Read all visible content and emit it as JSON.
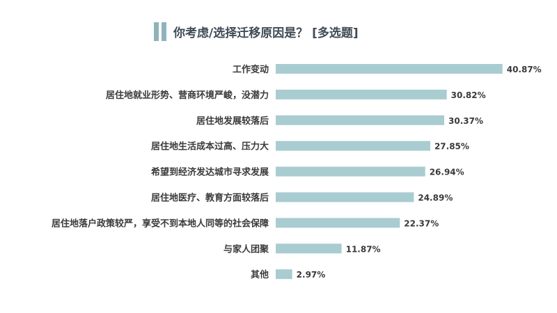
{
  "chart_data": {
    "type": "bar",
    "orientation": "horizontal",
    "title": "你考虑/选择迁移原因是？ [多选题]",
    "categories": [
      "工作变动",
      "居住地就业形势、营商环境严峻，没潜力",
      "居住地发展较落后",
      "居住地生活成本过高、压力大",
      "希望到经济发达城市寻求发展",
      "居住地医疗、教育方面较落后",
      "居住地落户政策较严，享受不到本地人同等的社会保障",
      "与家人团聚",
      "其他"
    ],
    "values": [
      40.87,
      30.82,
      30.37,
      27.85,
      26.94,
      24.89,
      22.37,
      11.87,
      2.97
    ],
    "value_labels": [
      "40.87%",
      "30.82%",
      "30.37%",
      "27.85%",
      "26.94%",
      "24.89%",
      "22.37%",
      "11.87%",
      "2.97%"
    ],
    "bar_color": "#a9ccd1",
    "grid": false,
    "legend": "none"
  }
}
